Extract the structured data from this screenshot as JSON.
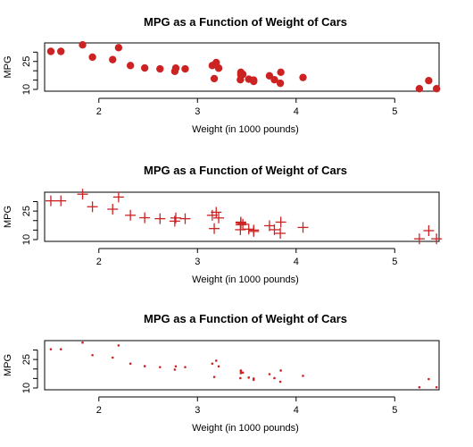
{
  "chart_data": [
    {
      "type": "scatter",
      "marker": "filled-circle",
      "title": "MPG as a Function of Weight of Cars",
      "xlabel": "Weight (in 1000 pounds)",
      "ylabel": "MPG",
      "xlim": [
        1.45,
        5.45
      ],
      "ylim": [
        10,
        34
      ],
      "xticks": [
        "2",
        "3",
        "4",
        "5"
      ],
      "yticks": [
        "10",
        "25"
      ],
      "color": "#cc2222"
    },
    {
      "type": "scatter",
      "marker": "plus",
      "title": "MPG as a Function of Weight of Cars",
      "xlabel": "Weight (in 1000 pounds)",
      "ylabel": "MPG",
      "xlim": [
        1.45,
        5.45
      ],
      "ylim": [
        10,
        34
      ],
      "xticks": [
        "2",
        "3",
        "4",
        "5"
      ],
      "yticks": [
        "10",
        "25"
      ],
      "color": "#cc2222"
    },
    {
      "type": "scatter",
      "marker": "small-dot",
      "title": "MPG as a Function of Weight of Cars",
      "xlabel": "Weight (in 1000 pounds)",
      "ylabel": "MPG",
      "xlim": [
        1.45,
        5.45
      ],
      "ylim": [
        10,
        34
      ],
      "xticks": [
        "2",
        "3",
        "4",
        "5"
      ],
      "yticks": [
        "10",
        "25"
      ],
      "color": "#cc2222"
    }
  ],
  "points": {
    "x": [
      2.62,
      2.875,
      2.32,
      3.215,
      3.44,
      3.46,
      3.57,
      3.19,
      3.15,
      3.44,
      3.44,
      4.07,
      3.73,
      3.78,
      5.25,
      5.424,
      5.345,
      2.2,
      1.615,
      1.835,
      2.465,
      3.52,
      3.435,
      3.84,
      3.845,
      1.935,
      2.14,
      1.513,
      3.17,
      2.77,
      3.57,
      2.78
    ],
    "y": [
      21.0,
      21.0,
      22.8,
      21.4,
      18.7,
      18.1,
      14.3,
      24.4,
      22.8,
      19.2,
      17.8,
      16.4,
      17.3,
      15.2,
      10.4,
      10.4,
      14.7,
      32.4,
      30.4,
      33.9,
      21.5,
      15.5,
      15.2,
      13.3,
      19.2,
      27.3,
      26.0,
      30.4,
      15.8,
      19.7,
      15.0,
      21.4
    ]
  }
}
